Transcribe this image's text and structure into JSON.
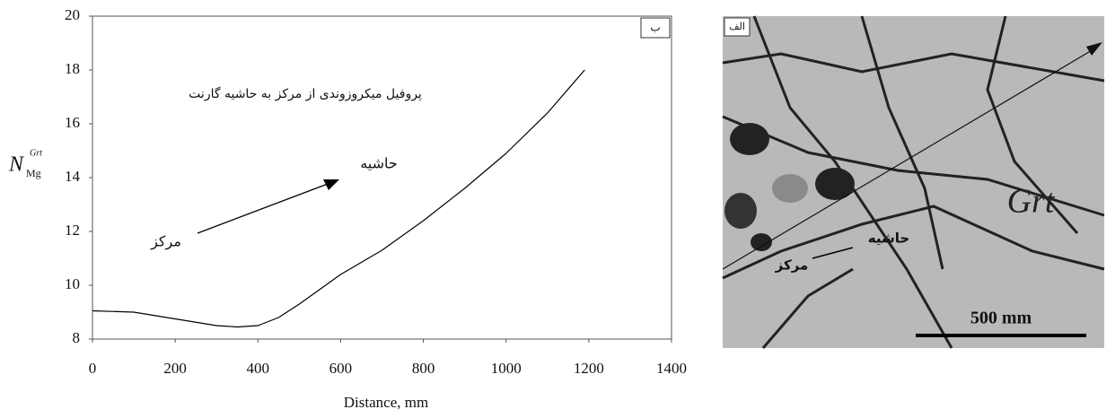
{
  "chart_data": {
    "type": "line",
    "title": "پروفیل میکروزوندی از مرکز به حاشیه گارنت",
    "panel_label": "ب",
    "annotations": [
      "حاشیه",
      "مرکز"
    ],
    "xlabel": "Distance, mm",
    "ylabel": "N",
    "ylabel_subscript": "Mg",
    "ylabel_superscript": "Grt",
    "x": [
      0,
      100,
      200,
      300,
      350,
      400,
      450,
      500,
      600,
      700,
      800,
      900,
      1000,
      1100,
      1190
    ],
    "values": [
      9.05,
      9.0,
      8.75,
      8.5,
      8.45,
      8.5,
      8.8,
      9.3,
      10.4,
      11.3,
      12.4,
      13.6,
      14.9,
      16.4,
      18.0
    ],
    "color": "#000000",
    "xlim": [
      0,
      1400
    ],
    "xticks": [
      0,
      200,
      400,
      600,
      800,
      1000,
      1200,
      1400
    ],
    "ylim": [
      8,
      20
    ],
    "yticks": [
      8,
      10,
      12,
      14,
      16,
      18,
      20
    ]
  },
  "image": {
    "panel_label": "الف",
    "mineral": "Grt",
    "rim_label": "حاشیه",
    "core_label": "مرکز",
    "scale_bar": "500 mm"
  }
}
